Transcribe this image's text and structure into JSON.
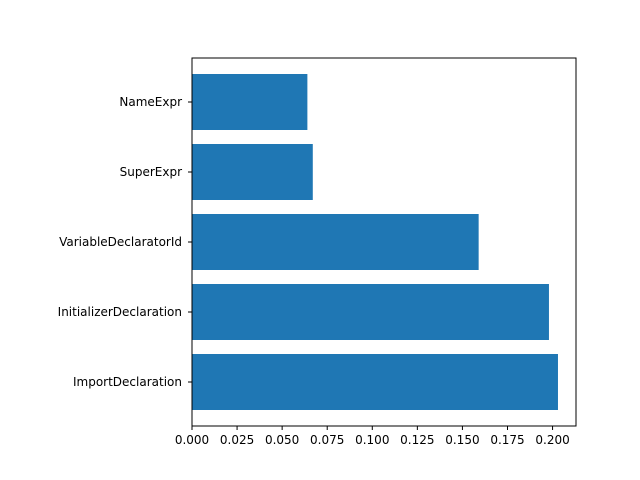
{
  "chart_data": {
    "type": "bar",
    "orientation": "horizontal",
    "categories": [
      "ImportDeclaration",
      "InitializerDeclaration",
      "VariableDeclaratorId",
      "SuperExpr",
      "NameExpr"
    ],
    "values": [
      0.203,
      0.198,
      0.159,
      0.067,
      0.064
    ],
    "title": "",
    "xlabel": "",
    "ylabel": "",
    "xlim": [
      0,
      0.213
    ],
    "xticks": [
      "0.000",
      "0.025",
      "0.050",
      "0.075",
      "0.100",
      "0.125",
      "0.150",
      "0.175",
      "0.200"
    ],
    "xtick_values": [
      0,
      0.025,
      0.05,
      0.075,
      0.1,
      0.125,
      0.15,
      0.175,
      0.2
    ],
    "grid": false,
    "legend": "none",
    "colors": {
      "bar": "#1f77b4",
      "axis": "#000000",
      "background": "#ffffff"
    }
  }
}
